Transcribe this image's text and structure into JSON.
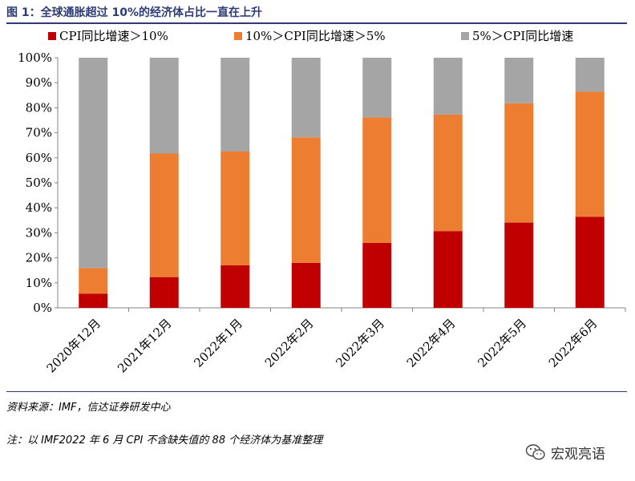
{
  "title": "图 1：全球通胀超过 10%的经济体占比一直在上升",
  "source": "资料来源：IMF，信达证券研发中心",
  "note": "注：以 IMF2022 年 6 月 CPI 不含缺失值的 88 个经济体为基准整理",
  "watermark": "宏观亮语",
  "icons": {
    "watermark": "wechat-icon"
  },
  "chart_data": {
    "type": "bar",
    "stacked": true,
    "categories": [
      "2020年12月",
      "2021年12月",
      "2022年1月",
      "2022年2月",
      "2022年3月",
      "2022年4月",
      "2022年5月",
      "2022年6月"
    ],
    "series": [
      {
        "name": "CPI同比增速＞10%",
        "color": "#c00000",
        "values": [
          5.7,
          12.3,
          17.0,
          18.0,
          26.0,
          30.7,
          34.1,
          36.4
        ]
      },
      {
        "name": "10%＞CPI同比增速＞5%",
        "color": "#ed7d31",
        "values": [
          10.2,
          49.4,
          45.5,
          50.2,
          50.1,
          46.6,
          47.7,
          50.0
        ]
      },
      {
        "name": "5%＞CPI同比增速",
        "color": "#a5a5a5",
        "values": [
          84.1,
          38.3,
          37.5,
          31.8,
          23.9,
          22.7,
          18.2,
          13.6
        ]
      }
    ],
    "yticks": [
      "0%",
      "10%",
      "20%",
      "30%",
      "40%",
      "50%",
      "60%",
      "70%",
      "80%",
      "90%",
      "100%"
    ],
    "ylim": [
      0,
      100
    ],
    "legend": "top",
    "grid": false
  }
}
